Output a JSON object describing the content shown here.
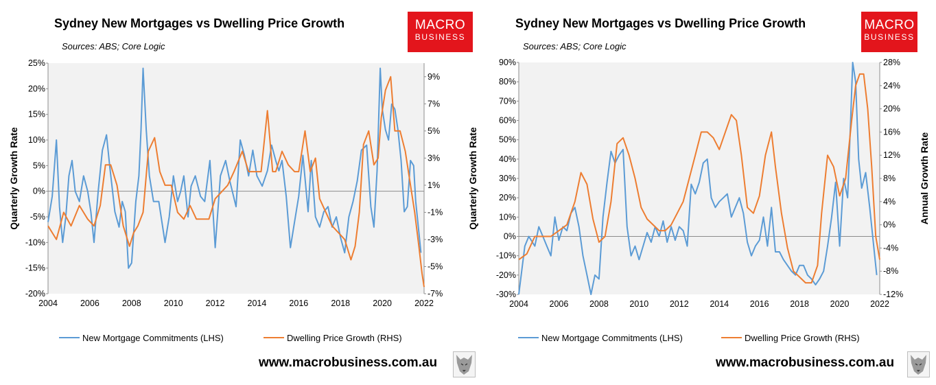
{
  "charts": [
    {
      "title": "Sydney New Mortgages vs Dwelling Price Growth",
      "sources": "Sources: ABS; Core Logic",
      "logo": {
        "line1": "MACRO",
        "line2": "BUSINESS"
      },
      "website": "www.macrobusiness.com.au",
      "chart_data": {
        "type": "line",
        "title": "Sydney New Mortgages vs Dwelling Price Growth",
        "xlabel": "",
        "ylabel": "Quarterly  Growth Rate",
        "y2label": "",
        "xlim": [
          2004,
          2022
        ],
        "x_ticks": [
          "2004",
          "2006",
          "2008",
          "2010",
          "2012",
          "2014",
          "2016",
          "2018",
          "2020",
          "2022"
        ],
        "ylim": [
          -20,
          25
        ],
        "y_ticks": [
          "25%",
          "20%",
          "15%",
          "10%",
          "5%",
          "0%",
          "-5%",
          "-10%",
          "-15%",
          "-20%"
        ],
        "y2lim": [
          -7,
          10
        ],
        "y2_ticks": [
          "9%",
          "7%",
          "5%",
          "3%",
          "1%",
          "-1%",
          "-3%",
          "-5%",
          "-7%"
        ],
        "legend": "bottom",
        "series": [
          {
            "name": "New Mortgage Commitments (LHS)",
            "axis": "left",
            "color": "#5b9bd5",
            "x": [
              2004.0,
              2004.2,
              2004.4,
              2004.55,
              2004.7,
              2004.85,
              2005.0,
              2005.15,
              2005.3,
              2005.5,
              2005.7,
              2005.9,
              2006.05,
              2006.2,
              2006.4,
              2006.6,
              2006.8,
              2006.95,
              2007.2,
              2007.4,
              2007.55,
              2007.7,
              2007.85,
              2008.0,
              2008.2,
              2008.35,
              2008.45,
              2008.55,
              2008.7,
              2008.85,
              2009.05,
              2009.3,
              2009.6,
              2009.8,
              2010.0,
              2010.2,
              2010.35,
              2010.5,
              2010.7,
              2010.85,
              2011.05,
              2011.3,
              2011.5,
              2011.75,
              2012.0,
              2012.25,
              2012.5,
              2012.7,
              2013.0,
              2013.2,
              2013.4,
              2013.6,
              2013.8,
              2014.0,
              2014.25,
              2014.5,
              2014.7,
              2014.9,
              2015.05,
              2015.2,
              2015.4,
              2015.6,
              2015.8,
              2016.0,
              2016.2,
              2016.45,
              2016.6,
              2016.8,
              2017.0,
              2017.2,
              2017.4,
              2017.6,
              2017.8,
              2018.0,
              2018.2,
              2018.4,
              2018.6,
              2018.8,
              2019.0,
              2019.25,
              2019.45,
              2019.6,
              2019.75,
              2019.9,
              2020.0,
              2020.15,
              2020.3,
              2020.45,
              2020.6,
              2020.75,
              2020.9,
              2021.05,
              2021.2,
              2021.35,
              2021.5,
              2021.6,
              2021.75,
              2021.85
            ],
            "y": [
              -6,
              -1,
              10,
              -3,
              -10,
              -5,
              3,
              6,
              0,
              -2,
              3,
              0,
              -4,
              -10,
              0,
              8,
              11,
              5,
              -4,
              -7,
              -2,
              -4,
              -15,
              -14,
              -2,
              3,
              12,
              24,
              12,
              3,
              -2,
              -2,
              -10,
              -5,
              3,
              -2,
              0,
              3,
              -5,
              1,
              3,
              -1,
              -2,
              6,
              -11,
              3,
              6,
              2,
              -3,
              10,
              7,
              3,
              8,
              3,
              1,
              4,
              9,
              6,
              4,
              6,
              -1,
              -11,
              -6,
              -1,
              7,
              -4,
              6,
              -5,
              -7,
              -4,
              -3,
              -7,
              -5,
              -9,
              -12,
              -5,
              -2,
              2,
              8,
              9,
              -3,
              -7,
              4,
              24,
              16,
              12,
              10,
              17,
              16,
              12,
              6,
              -4,
              -3,
              6,
              5,
              -2,
              -8,
              -12
            ]
          },
          {
            "name": "Dwelling Price Growth (RHS)",
            "axis": "right",
            "color": "#ed7d31",
            "x": [
              2004.0,
              2004.4,
              2004.75,
              2005.1,
              2005.5,
              2005.9,
              2006.2,
              2006.5,
              2006.75,
              2007.0,
              2007.3,
              2007.6,
              2007.9,
              2008.1,
              2008.3,
              2008.55,
              2008.8,
              2009.1,
              2009.35,
              2009.6,
              2009.9,
              2010.2,
              2010.5,
              2010.8,
              2011.1,
              2011.4,
              2011.7,
              2012.0,
              2012.3,
              2012.6,
              2012.9,
              2013.3,
              2013.6,
              2013.9,
              2014.2,
              2014.5,
              2014.75,
              2014.9,
              2015.2,
              2015.5,
              2015.8,
              2016.0,
              2016.3,
              2016.55,
              2016.8,
              2017.0,
              2017.3,
              2017.6,
              2017.9,
              2018.2,
              2018.5,
              2018.7,
              2018.9,
              2019.1,
              2019.35,
              2019.6,
              2019.8,
              2019.95,
              2020.15,
              2020.4,
              2020.6,
              2020.85,
              2021.1,
              2021.35,
              2021.55,
              2021.75,
              2021.9,
              2022.0
            ],
            "y": [
              -2,
              -3,
              -1,
              -2,
              -0.5,
              -1.5,
              -2,
              -0.5,
              2.5,
              2.5,
              1,
              -2,
              -3.5,
              -2.5,
              -2,
              -1,
              3.5,
              4.5,
              2,
              1,
              1,
              -1,
              -1.5,
              -0.5,
              -1.5,
              -1.5,
              -1.5,
              0,
              0.5,
              1,
              2,
              3.5,
              2,
              2,
              2,
              6.5,
              2,
              2,
              3.5,
              2.5,
              2,
              2,
              5,
              2,
              3,
              0,
              -1,
              -2,
              -2.5,
              -3,
              -4.5,
              -3.5,
              -1,
              4,
              5,
              2.5,
              3,
              6,
              8,
              9,
              5,
              5,
              3.5,
              1,
              -1,
              -3.5,
              -5.5,
              -6.5
            ]
          }
        ]
      }
    },
    {
      "title": "Sydney New Mortgages vs Dwelling Price Growth",
      "sources": "Sources: ABS; Core Logic",
      "logo": {
        "line1": "MACRO",
        "line2": "BUSINESS"
      },
      "website": "www.macrobusiness.com.au",
      "chart_data": {
        "type": "line",
        "title": "Sydney New Mortgages vs Dwelling Price Growth",
        "xlabel": "",
        "ylabel": "Quarterly Growth Rate",
        "y2label": "Annual Growth Rate",
        "xlim": [
          2004,
          2022
        ],
        "x_ticks": [
          "2004",
          "2006",
          "2008",
          "2010",
          "2012",
          "2014",
          "2016",
          "2018",
          "2020",
          "2022"
        ],
        "ylim": [
          -30,
          90
        ],
        "y_ticks": [
          "90%",
          "80%",
          "70%",
          "60%",
          "50%",
          "40%",
          "30%",
          "20%",
          "10%",
          "0%",
          "-10%",
          "-20%",
          "-30%"
        ],
        "y2lim": [
          -12,
          28
        ],
        "y2_ticks": [
          "28%",
          "24%",
          "20%",
          "16%",
          "12%",
          "8%",
          "4%",
          "0%",
          "-4%",
          "-8%",
          "-12%"
        ],
        "legend": "bottom",
        "series": [
          {
            "name": "New Mortgage Commitments (LHS)",
            "axis": "left",
            "color": "#5b9bd5",
            "x": [
              2004.0,
              2004.3,
              2004.5,
              2004.8,
              2005.0,
              2005.2,
              2005.4,
              2005.6,
              2005.8,
              2006.0,
              2006.2,
              2006.4,
              2006.6,
              2006.8,
              2007.0,
              2007.2,
              2007.4,
              2007.6,
              2007.8,
              2008.0,
              2008.2,
              2008.4,
              2008.6,
              2008.8,
              2009.0,
              2009.2,
              2009.4,
              2009.6,
              2009.8,
              2010.0,
              2010.2,
              2010.4,
              2010.6,
              2010.8,
              2011.0,
              2011.2,
              2011.4,
              2011.6,
              2011.8,
              2012.0,
              2012.2,
              2012.4,
              2012.6,
              2012.8,
              2013.0,
              2013.2,
              2013.4,
              2013.6,
              2013.8,
              2014.0,
              2014.2,
              2014.4,
              2014.6,
              2014.8,
              2015.0,
              2015.2,
              2015.4,
              2015.6,
              2015.8,
              2016.0,
              2016.2,
              2016.4,
              2016.6,
              2016.8,
              2017.0,
              2017.2,
              2017.4,
              2017.6,
              2017.8,
              2018.0,
              2018.2,
              2018.4,
              2018.6,
              2018.8,
              2019.0,
              2019.2,
              2019.4,
              2019.6,
              2019.8,
              2020.0,
              2020.2,
              2020.4,
              2020.55,
              2020.65,
              2020.8,
              2020.95,
              2021.1,
              2021.3,
              2021.5,
              2021.7,
              2021.85
            ],
            "y": [
              -30,
              -5,
              0,
              -5,
              5,
              0,
              -5,
              -10,
              10,
              -2,
              5,
              3,
              12,
              15,
              5,
              -10,
              -20,
              -30,
              -20,
              -22,
              10,
              28,
              44,
              38,
              42,
              45,
              5,
              -10,
              -5,
              -12,
              -5,
              2,
              -3,
              5,
              0,
              8,
              -3,
              5,
              -2,
              5,
              3,
              -5,
              27,
              22,
              28,
              38,
              40,
              20,
              15,
              18,
              20,
              22,
              10,
              15,
              20,
              12,
              -3,
              -10,
              -5,
              -2,
              10,
              -5,
              15,
              -8,
              -8,
              -12,
              -15,
              -18,
              -20,
              -15,
              -15,
              -20,
              -22,
              -25,
              -22,
              -18,
              -5,
              10,
              28,
              -5,
              30,
              20,
              60,
              90,
              80,
              40,
              25,
              33,
              15,
              -5,
              -20
            ]
          },
          {
            "name": "Dwelling Price Growth (RHS)",
            "axis": "right",
            "color": "#ed7d31",
            "x": [
              2004.0,
              2004.4,
              2004.8,
              2005.2,
              2005.6,
              2006.0,
              2006.4,
              2006.8,
              2007.1,
              2007.4,
              2007.7,
              2008.0,
              2008.3,
              2008.6,
              2008.9,
              2009.2,
              2009.5,
              2009.8,
              2010.1,
              2010.4,
              2010.7,
              2011.0,
              2011.3,
              2011.6,
              2011.9,
              2012.2,
              2012.5,
              2012.8,
              2013.1,
              2013.4,
              2013.7,
              2014.0,
              2014.3,
              2014.6,
              2014.85,
              2015.1,
              2015.4,
              2015.7,
              2016.0,
              2016.3,
              2016.6,
              2016.8,
              2017.1,
              2017.4,
              2017.7,
              2018.0,
              2018.3,
              2018.6,
              2018.9,
              2019.1,
              2019.4,
              2019.7,
              2020.0,
              2020.3,
              2020.6,
              2020.8,
              2021.0,
              2021.2,
              2021.4,
              2021.6,
              2021.8,
              2022.0
            ],
            "y": [
              -6,
              -5,
              -2,
              -2,
              -2,
              -1,
              0,
              4,
              9,
              7,
              1,
              -3,
              -2,
              4,
              14,
              15,
              12,
              8,
              3,
              1,
              0,
              -1,
              -1,
              0,
              2,
              4,
              8,
              12,
              16,
              16,
              15,
              13,
              16,
              19,
              18,
              12,
              3,
              2,
              5,
              12,
              16,
              10,
              2,
              -4,
              -8,
              -9,
              -10,
              -10,
              -7,
              2,
              12,
              10,
              5,
              8,
              18,
              24,
              26,
              26,
              20,
              10,
              -2,
              -6
            ]
          }
        ]
      }
    }
  ]
}
